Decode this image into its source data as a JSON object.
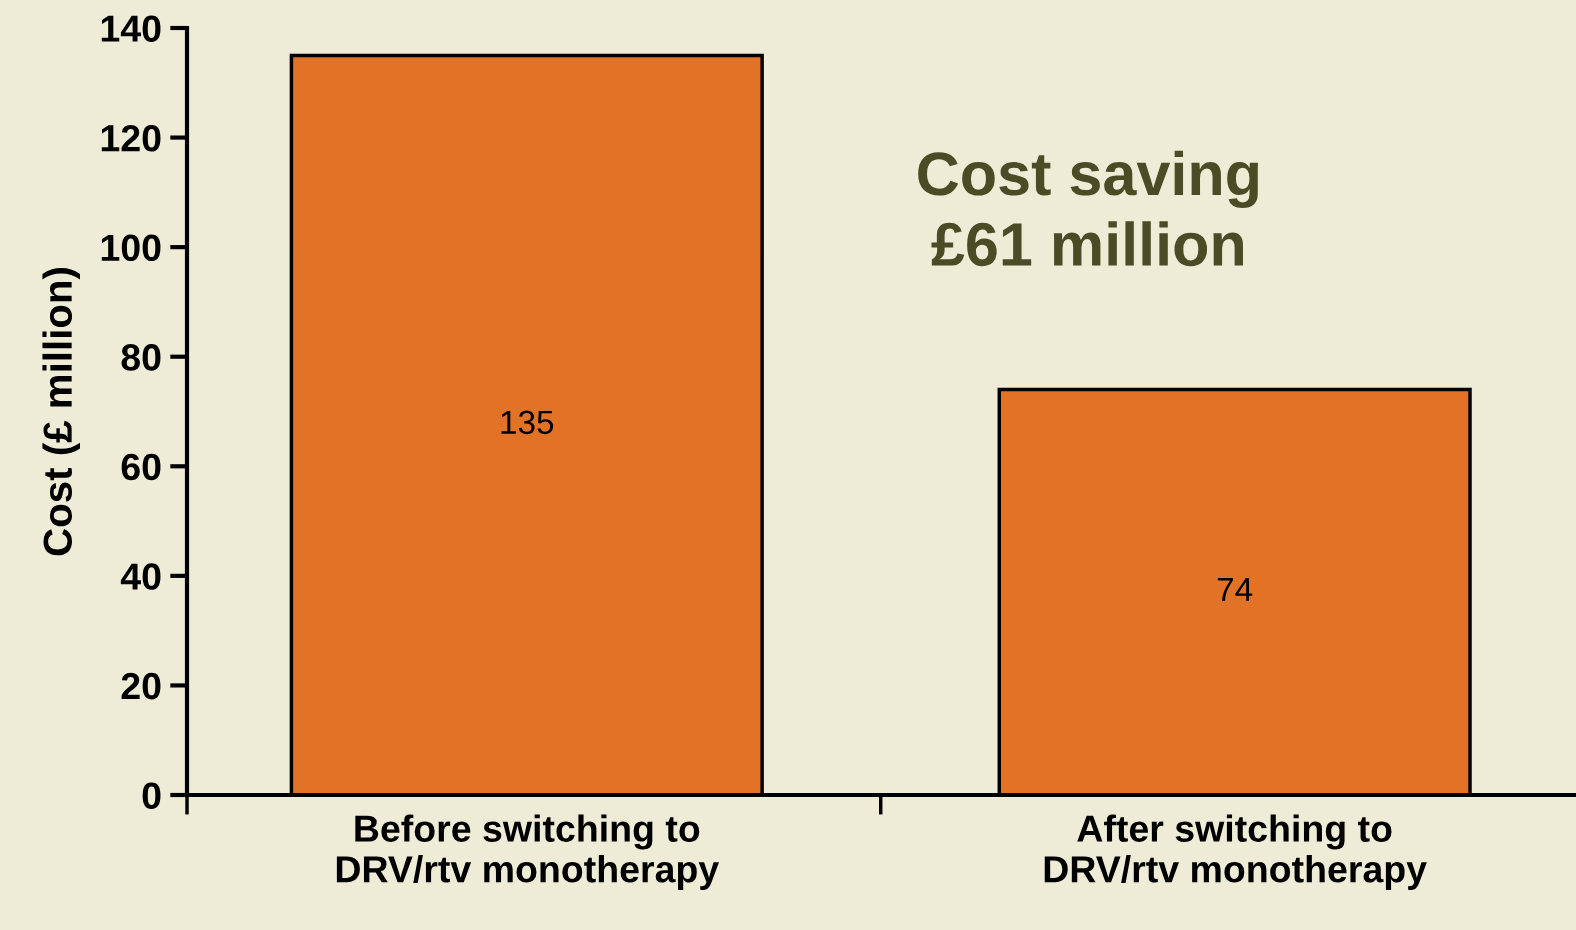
{
  "chart_data": {
    "type": "bar",
    "ylabel": "Cost (£ million)",
    "categories": [
      "Before switching to\nDRV/rtv monotherapy",
      "After switching to\nDRV/rtv monotherapy"
    ],
    "values": [
      135,
      74
    ],
    "color": "#e27225",
    "data_labels": true,
    "ylim": [
      0,
      140
    ],
    "yticks": [
      0,
      20,
      40,
      60,
      80,
      100,
      120,
      140
    ],
    "grid": false,
    "legend": false,
    "annotations": [
      "Cost saving\n£61 million"
    ]
  }
}
